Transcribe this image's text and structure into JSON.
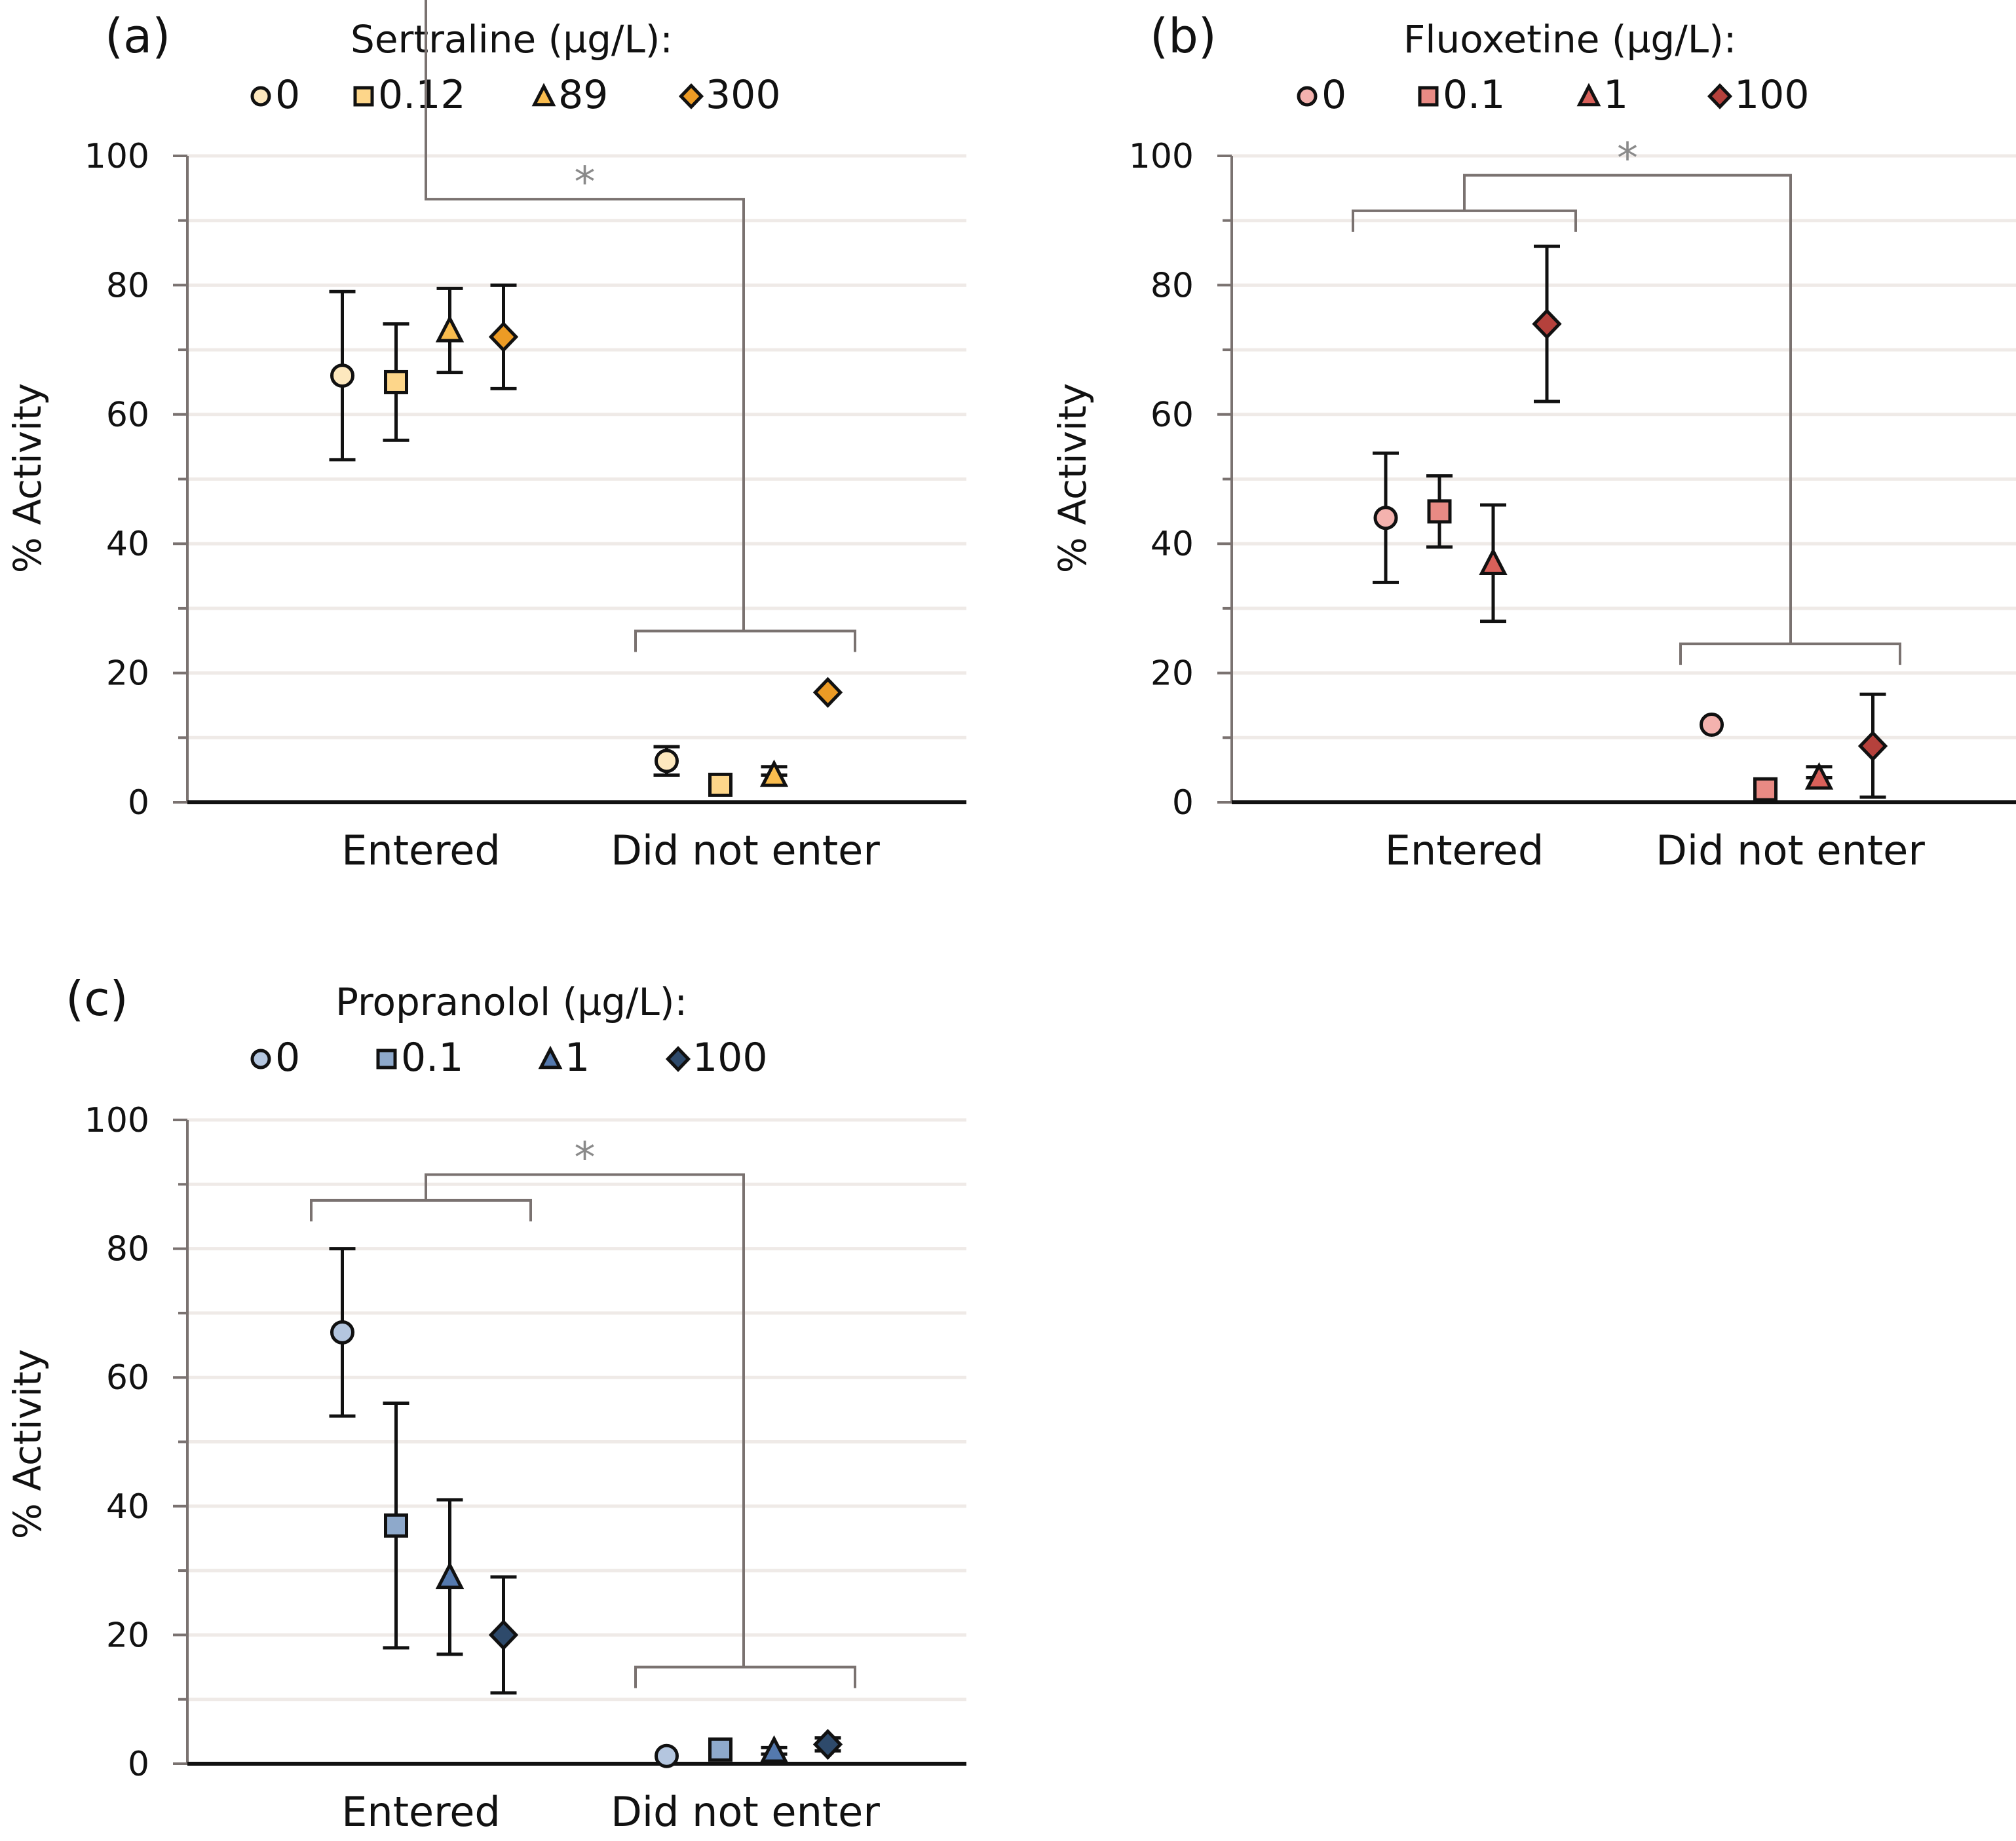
{
  "figure": {
    "panels": [
      {
        "id": "a",
        "label": "(a)",
        "legend_title": "Sertraline (µg/L):",
        "significance": "*"
      },
      {
        "id": "b",
        "label": "(b)",
        "legend_title": "Fluoxetine (µg/L):",
        "significance": "*"
      },
      {
        "id": "c",
        "label": "(c)",
        "legend_title": "Propranolol  (µg/L):",
        "significance": "*"
      }
    ]
  },
  "chart_data": [
    {
      "type": "scatter",
      "title": "(a) Sertraline (µg/L)",
      "xlabel": "",
      "ylabel": "% Activity",
      "ylim": [
        0,
        100
      ],
      "yticks": [
        "0",
        "20",
        "40",
        "60",
        "80",
        "100"
      ],
      "categories": [
        "Entered",
        "Did not enter"
      ],
      "grid": true,
      "legend_position": "top",
      "significance_label": "*",
      "series": [
        {
          "name": "0",
          "marker": "circle",
          "color": "#FDE8BE",
          "values": [
            66,
            6.4
          ],
          "err_low": [
            53,
            4.2
          ],
          "err_high": [
            79,
            8.6
          ]
        },
        {
          "name": "0.12",
          "marker": "square",
          "color": "#FDD68A",
          "values": [
            65,
            2.7
          ],
          "err_low": [
            56,
            2.7
          ],
          "err_high": [
            74,
            2.7
          ]
        },
        {
          "name": "89",
          "marker": "triangle",
          "color": "#F9BC4E",
          "values": [
            73,
            4.2
          ],
          "err_low": [
            66.5,
            4.2
          ],
          "err_high": [
            79.5,
            5.5
          ]
        },
        {
          "name": "300",
          "marker": "diamond",
          "color": "#EC9B25",
          "values": [
            72,
            17
          ],
          "err_low": [
            64,
            17
          ],
          "err_high": [
            80,
            17
          ]
        }
      ]
    },
    {
      "type": "scatter",
      "title": "(b) Fluoxetine (µg/L)",
      "xlabel": "",
      "ylabel": "% Activity",
      "ylim": [
        0,
        100
      ],
      "yticks": [
        "0",
        "20",
        "40",
        "60",
        "80",
        "100"
      ],
      "categories": [
        "Entered",
        "Did not enter"
      ],
      "grid": true,
      "legend_position": "top",
      "significance_label": "*",
      "series": [
        {
          "name": "0",
          "marker": "circle",
          "color": "#F4B2AE",
          "values": [
            44,
            12
          ],
          "err_low": [
            34,
            12
          ],
          "err_high": [
            54,
            12
          ]
        },
        {
          "name": "0.1",
          "marker": "square",
          "color": "#E98A84",
          "values": [
            45,
            2
          ],
          "err_low": [
            39.5,
            2
          ],
          "err_high": [
            50.5,
            2
          ]
        },
        {
          "name": "1",
          "marker": "triangle",
          "color": "#D9605A",
          "values": [
            37,
            3.8
          ],
          "err_low": [
            28,
            3.8
          ],
          "err_high": [
            46,
            5.5
          ]
        },
        {
          "name": "100",
          "marker": "diamond",
          "color": "#B5413C",
          "values": [
            74,
            8.7
          ],
          "err_low": [
            62,
            0.8
          ],
          "err_high": [
            86,
            16.7
          ]
        }
      ]
    },
    {
      "type": "scatter",
      "title": "(c) Propranolol (µg/L)",
      "xlabel": "",
      "ylabel": "% Activity",
      "ylim": [
        0,
        100
      ],
      "yticks": [
        "0",
        "20",
        "40",
        "60",
        "80",
        "100"
      ],
      "categories": [
        "Entered",
        "Did not enter"
      ],
      "grid": true,
      "legend_position": "top",
      "significance_label": "*",
      "series": [
        {
          "name": "0",
          "marker": "circle",
          "color": "#B4C6DF",
          "values": [
            67,
            1.2
          ],
          "err_low": [
            54,
            1.2
          ],
          "err_high": [
            80,
            1.2
          ]
        },
        {
          "name": "0.1",
          "marker": "square",
          "color": "#8EA9CB",
          "values": [
            37,
            2.2
          ],
          "err_low": [
            18,
            2.2
          ],
          "err_high": [
            56,
            2.2
          ]
        },
        {
          "name": "1",
          "marker": "triangle",
          "color": "#5479AE",
          "values": [
            29,
            2
          ],
          "err_low": [
            17,
            1.5
          ],
          "err_high": [
            41,
            2.5
          ]
        },
        {
          "name": "100",
          "marker": "diamond",
          "color": "#2E4A6B",
          "values": [
            20,
            3
          ],
          "err_low": [
            11,
            2
          ],
          "err_high": [
            29,
            4
          ]
        }
      ]
    }
  ]
}
